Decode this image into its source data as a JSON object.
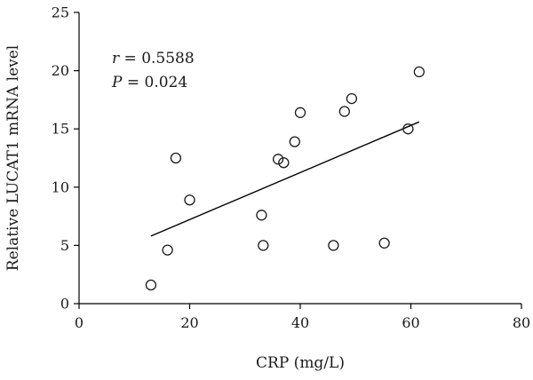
{
  "chart_data": {
    "type": "scatter",
    "title": "",
    "xlabel": "CRP (mg/L)",
    "ylabel": "Relative LUCAT1 mRNA level",
    "xlim": [
      0,
      80
    ],
    "ylim": [
      0,
      25
    ],
    "xticks": [
      "0",
      "20",
      "40",
      "60",
      "80"
    ],
    "yticks": [
      "0",
      "5",
      "10",
      "15",
      "20",
      "25"
    ],
    "grid": false,
    "legend": "none",
    "points": [
      {
        "x": 13.0,
        "y": 1.6
      },
      {
        "x": 16.0,
        "y": 4.6
      },
      {
        "x": 17.5,
        "y": 12.5
      },
      {
        "x": 20.0,
        "y": 8.9
      },
      {
        "x": 33.0,
        "y": 7.6
      },
      {
        "x": 33.3,
        "y": 5.0
      },
      {
        "x": 36.0,
        "y": 12.4
      },
      {
        "x": 37.0,
        "y": 12.1
      },
      {
        "x": 39.0,
        "y": 13.9
      },
      {
        "x": 40.0,
        "y": 16.4
      },
      {
        "x": 46.0,
        "y": 5.0
      },
      {
        "x": 48.0,
        "y": 16.5
      },
      {
        "x": 49.3,
        "y": 17.6
      },
      {
        "x": 55.2,
        "y": 5.2
      },
      {
        "x": 59.5,
        "y": 15.0
      },
      {
        "x": 61.5,
        "y": 19.9
      }
    ],
    "regression_line": {
      "x": [
        13.0,
        61.5
      ],
      "y": [
        5.8,
        15.6
      ]
    },
    "annotations": {
      "r_label": "r",
      "r_value": " = 0.5588",
      "p_label": "P",
      "p_value": " = 0.024"
    },
    "colors": {
      "marker_edge": "#1a1a1a",
      "line": "#000000"
    }
  }
}
